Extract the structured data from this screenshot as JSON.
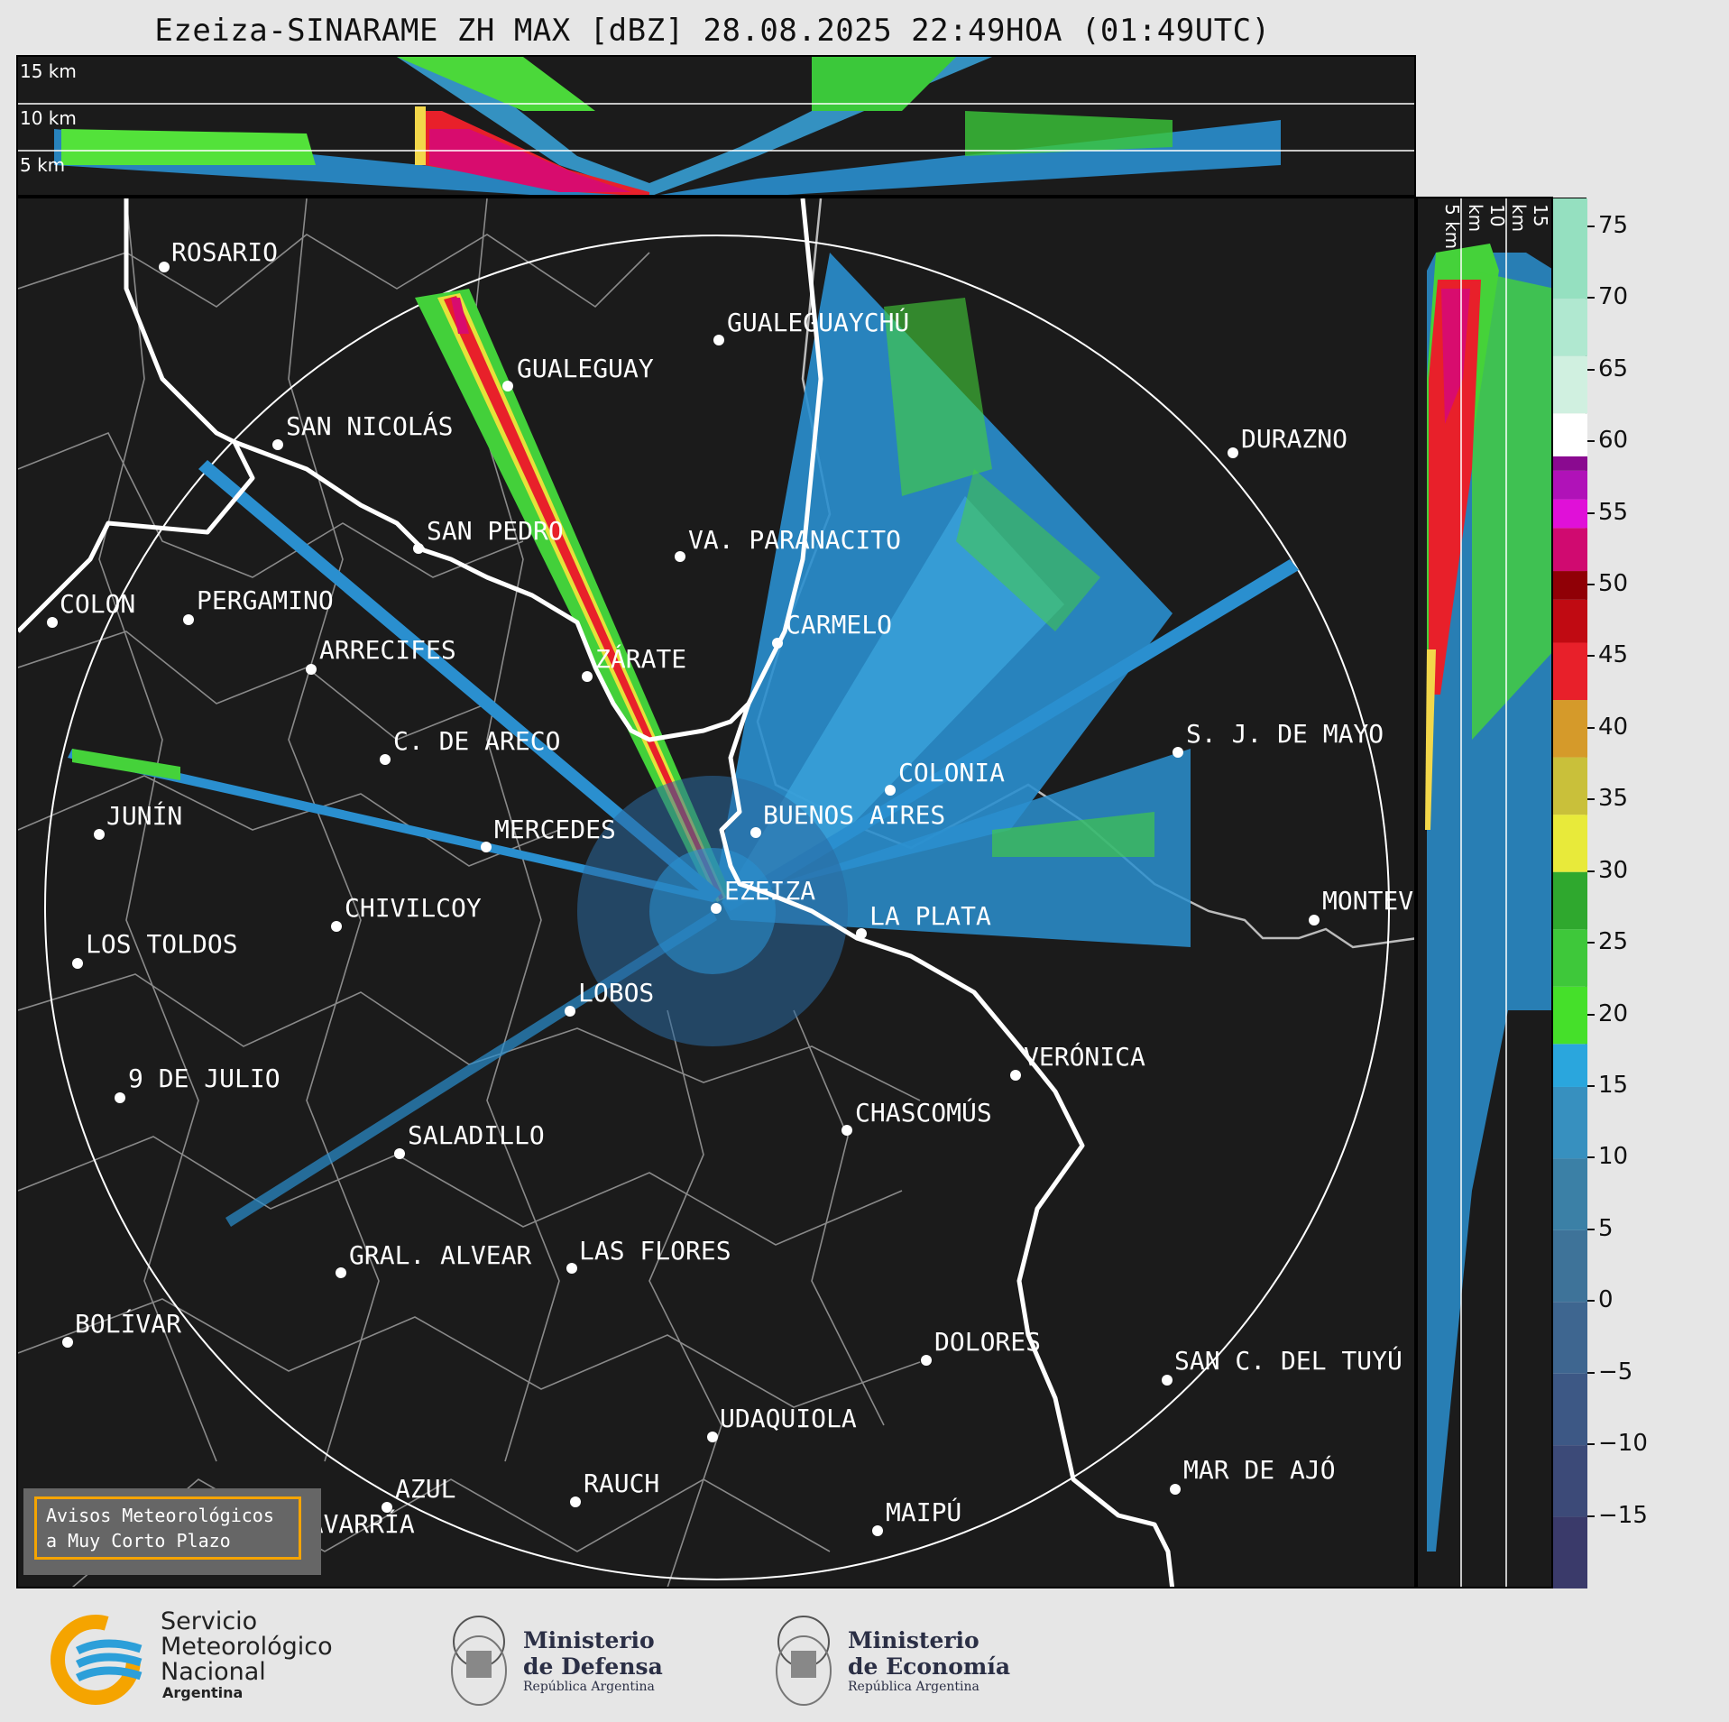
{
  "title": "Ezeiza-SINARAME ZH MAX [dBZ] 28.08.2025 22:49HOA (01:49UTC)",
  "top_panel": {
    "height_labels": [
      "15 km",
      "10 km",
      "5 km"
    ]
  },
  "side_panel": {
    "height_labels": [
      "5 km",
      "10 km",
      "15 km"
    ]
  },
  "colorbar": {
    "unit": "dBZ",
    "ticks": [
      "75",
      "70",
      "65",
      "60",
      "55",
      "50",
      "45",
      "40",
      "35",
      "30",
      "25",
      "20",
      "15",
      "10",
      "5",
      "0",
      "−5",
      "−10",
      "−15"
    ],
    "range": [
      -20,
      77
    ]
  },
  "cities": [
    {
      "name": "ROSARIO"
    },
    {
      "name": "GUALEGUAYCHÚ"
    },
    {
      "name": "GUALEGUAY"
    },
    {
      "name": "SAN NICOLÁS"
    },
    {
      "name": "DURAZNO"
    },
    {
      "name": "SAN PEDRO"
    },
    {
      "name": "VA. PARANACITO"
    },
    {
      "name": "COLON"
    },
    {
      "name": "PERGAMINO"
    },
    {
      "name": "CARMELO"
    },
    {
      "name": "ARRECIFES"
    },
    {
      "name": "ZÁRATE"
    },
    {
      "name": "S. J. DE MAYO"
    },
    {
      "name": "C. DE ARECO"
    },
    {
      "name": "COLONIA"
    },
    {
      "name": "JUNÍN"
    },
    {
      "name": "BUENOS AIRES"
    },
    {
      "name": "MERCEDES"
    },
    {
      "name": "EZEIZA"
    },
    {
      "name": "MONTEVIDEO"
    },
    {
      "name": "CHIVILCOY"
    },
    {
      "name": "LA PLATA"
    },
    {
      "name": "LOS TOLDOS"
    },
    {
      "name": "LOBOS"
    },
    {
      "name": "VERÓNICA"
    },
    {
      "name": "9 DE JULIO"
    },
    {
      "name": "CHASCOMÚS"
    },
    {
      "name": "SALADILLO"
    },
    {
      "name": "GRAL. ALVEAR"
    },
    {
      "name": "LAS FLORES"
    },
    {
      "name": "BOLÍVAR"
    },
    {
      "name": "DOLORES"
    },
    {
      "name": "SAN C. DEL TUYÚ"
    },
    {
      "name": "UDAQUIOLA"
    },
    {
      "name": "MAR DE AJÓ"
    },
    {
      "name": "AZUL"
    },
    {
      "name": "RAUCH"
    },
    {
      "name": "OLAVARRÍA"
    },
    {
      "name": "MAIPÚ"
    }
  ],
  "warning_box": {
    "line1": "Avisos Meteorológicos",
    "line2": "a Muy Corto Plazo"
  },
  "logos": {
    "smn": {
      "line1": "Servicio",
      "line2": "Meteorológico",
      "line3": "Nacional",
      "line4": "Argentina"
    },
    "defensa": {
      "line1": "Ministerio",
      "line2": "de Defensa",
      "line3": "República Argentina"
    },
    "economia": {
      "line1": "Ministerio",
      "line2": "de Economía",
      "line3": "República Argentina"
    }
  },
  "colors": {
    "background": "#1b1b1b",
    "warning_border": "#f5a400",
    "smn_orange": "#f5a400",
    "smn_blue": "#2c9fd9"
  }
}
